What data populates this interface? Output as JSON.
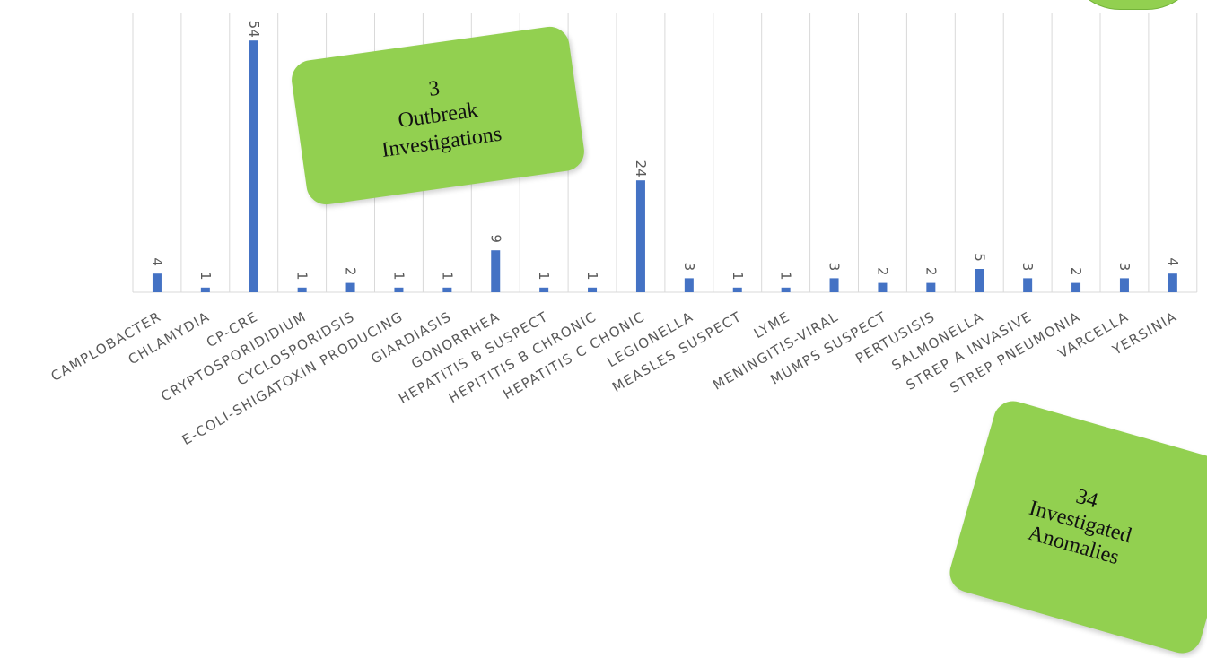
{
  "chart_data": {
    "type": "bar",
    "categories": [
      "CAMPLOBACTER",
      "CHLAMYDIA",
      "CP-CRE",
      "CRYPTOSPORIDIDIUM",
      "CYCLOSPORIDSIS",
      "E-COLI-SHIGATOXIN PRODUCING",
      "GIARDIASIS",
      "GONORRHEA",
      "HEPATITIS B SUSPECT",
      "HEPITITIS B CHRONIC",
      "HEPATITIS C CHONIC",
      "LEGIONELLA",
      "MEASLES SUSPECT",
      "LYME",
      "MENINGITIS-VIRAL",
      "MUMPS SUSPECT",
      "PERTUSISIS",
      "SALMONELLA",
      "STREP A INVASIVE",
      "STREP PNEUMONIA",
      "VARCELLA",
      "YERSINIA"
    ],
    "values": [
      4,
      1,
      54,
      1,
      2,
      1,
      1,
      9,
      1,
      1,
      24,
      3,
      1,
      1,
      3,
      2,
      2,
      5,
      3,
      2,
      3,
      4
    ],
    "data_labels": [
      "4",
      "1",
      "54",
      "1",
      "2",
      "1",
      "1",
      "9",
      "1",
      "1",
      "24",
      "3",
      "1",
      "1",
      "3",
      "2",
      "2",
      "5",
      "3",
      "2",
      "3",
      "4"
    ],
    "ylim": [
      0,
      60
    ],
    "grid": "vertical",
    "bar_color": "#4472c4",
    "gridline_color": "#d9d9d9",
    "label_color": "#595959"
  },
  "callouts": {
    "outbreak": {
      "number": "3",
      "line1": "Outbreak",
      "line2": "Investigations"
    },
    "anomalies": {
      "number": "34",
      "line1": "Investigated",
      "line2": "Anomalies"
    },
    "fill_color": "#92d050"
  }
}
